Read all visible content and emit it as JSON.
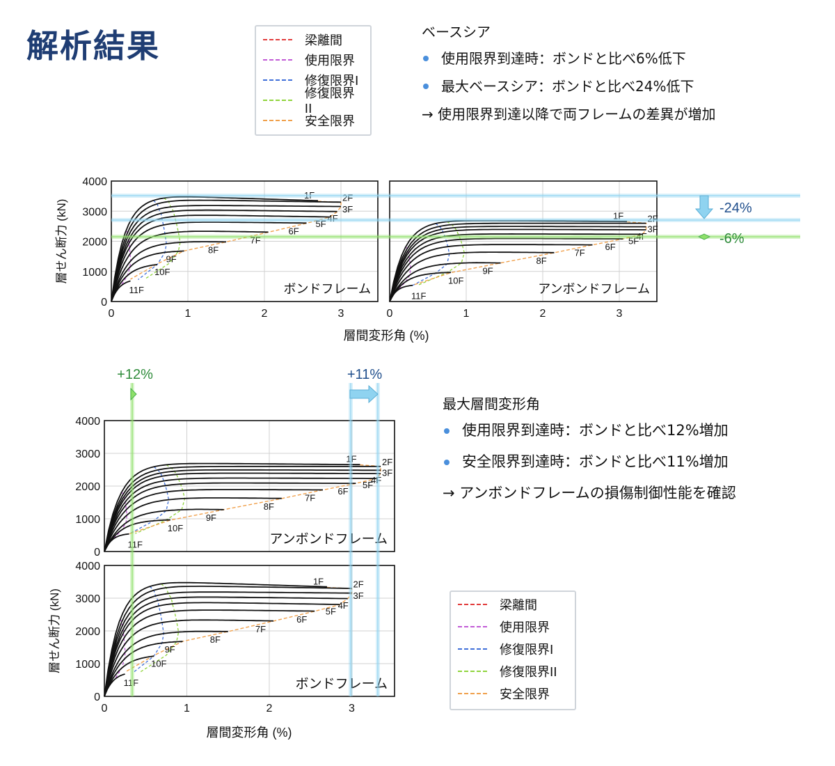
{
  "page": {
    "title": "解析結果"
  },
  "legend": {
    "items": [
      {
        "label": "梁離間",
        "color": "#e23b3b"
      },
      {
        "label": "使用限界",
        "color": "#c15ad6"
      },
      {
        "label": "修復限界I",
        "color": "#3f6fd9"
      },
      {
        "label": "修復限界II",
        "color": "#8fd43b"
      },
      {
        "label": "安全限界",
        "color": "#f0a04b"
      }
    ]
  },
  "notes": {
    "base_shear": {
      "heading": "ベースシア",
      "bullets": [
        "使用限界到達時：ボンドと比べ6%低下",
        "最大ベースシア：ボンドと比べ24%低下"
      ],
      "conclusion": "→ 使用限界到達以降で両フレームの差異が増加"
    },
    "drift": {
      "heading": "最大層間変形角",
      "bullets": [
        "使用限界到達時：ボンドと比べ12%増加",
        "安全限界到達時：ボンドと比べ11%増加"
      ],
      "conclusion": "→ アンボンドフレームの損傷制御性能を確認"
    }
  },
  "annotations": {
    "minus24": "-24%",
    "minus6": "-6%",
    "plus12": "+12%",
    "plus11": "+11%",
    "arrow_blue": "#8fd3f0",
    "arrow_green": "#8ee06a",
    "text_blue": "#1f4e8c",
    "text_green": "#2e8b3a"
  },
  "chart_data": [
    {
      "type": "line",
      "name": "bond-top",
      "frame_label": "ボンドフレーム",
      "xlabel": "層間変形角 (%)",
      "ylabel": "層せん断力 (kN)",
      "xlim": [
        0,
        3.5
      ],
      "ylim": [
        0,
        4000
      ],
      "xticks": [
        "0",
        "1",
        "2",
        "3"
      ],
      "yticks": [
        "0",
        "1000",
        "2000",
        "3000",
        "4000"
      ],
      "grid": true,
      "series": [
        {
          "name": "1F",
          "peak": 3500,
          "end": 3330,
          "yield_x": 0.55
        },
        {
          "name": "2F",
          "peak": 3380,
          "end": 3290,
          "yield_x": 0.6
        },
        {
          "name": "3F",
          "peak": 3200,
          "end": 3150,
          "yield_x": 0.62
        },
        {
          "name": "4F",
          "peak": 3050,
          "end": 2980,
          "yield_x": 0.65
        },
        {
          "name": "5F",
          "peak": 2880,
          "end": 2800,
          "yield_x": 0.66
        },
        {
          "name": "6F",
          "peak": 2650,
          "end": 2600,
          "yield_x": 0.68
        },
        {
          "name": "7F",
          "peak": 2350,
          "end": 2300,
          "yield_x": 0.7
        },
        {
          "name": "8F",
          "peak": 2000,
          "end": 1980,
          "yield_x": 0.72
        },
        {
          "name": "9F",
          "peak": 1700,
          "end": 1680,
          "yield_x": 0.7
        },
        {
          "name": "10F",
          "peak": 1280,
          "end": 1250,
          "yield_x": 0.6
        },
        {
          "name": "11F",
          "peak": 760,
          "end": 740,
          "yield_x": 0.35
        }
      ],
      "end_x": [
        2.7,
        3.0,
        3.0,
        2.95,
        2.85,
        2.55,
        2.05,
        1.5,
        0.95,
        0.6,
        0.25
      ]
    },
    {
      "type": "line",
      "name": "unbond-top",
      "frame_label": "アンボンドフレーム",
      "xlabel": "",
      "ylabel": "",
      "xlim": [
        0,
        3.5
      ],
      "ylim": [
        0,
        4000
      ],
      "xticks": [
        "0",
        "1",
        "2",
        "3"
      ],
      "yticks": [],
      "grid": true,
      "series": [
        {
          "name": "1F",
          "peak": 2700,
          "end": 2650,
          "yield_x": 0.6
        },
        {
          "name": "2F",
          "peak": 2600,
          "end": 2600,
          "yield_x": 0.65
        },
        {
          "name": "3F",
          "peak": 2500,
          "end": 2480,
          "yield_x": 0.68
        },
        {
          "name": "4F",
          "peak": 2400,
          "end": 2380,
          "yield_x": 0.7
        },
        {
          "name": "5F",
          "peak": 2250,
          "end": 2230,
          "yield_x": 0.72
        },
        {
          "name": "6F",
          "peak": 2100,
          "end": 2080,
          "yield_x": 0.74
        },
        {
          "name": "7F",
          "peak": 1900,
          "end": 1880,
          "yield_x": 0.76
        },
        {
          "name": "8F",
          "peak": 1650,
          "end": 1620,
          "yield_x": 0.78
        },
        {
          "name": "9F",
          "peak": 1300,
          "end": 1280,
          "yield_x": 0.75
        },
        {
          "name": "10F",
          "peak": 980,
          "end": 960,
          "yield_x": 0.6
        },
        {
          "name": "11F",
          "peak": 560,
          "end": 540,
          "yield_x": 0.3
        }
      ],
      "end_x": [
        3.1,
        3.35,
        3.35,
        3.35,
        3.3,
        3.05,
        2.65,
        2.15,
        1.45,
        0.8,
        0.3
      ]
    },
    {
      "type": "line",
      "name": "unbond-bottom",
      "frame_label": "アンボンドフレーム",
      "xlabel": "",
      "ylabel": "",
      "xlim": [
        0,
        3.5
      ],
      "ylim": [
        0,
        4000
      ],
      "xticks": [],
      "yticks": [
        "0",
        "1000",
        "2000",
        "3000",
        "4000"
      ],
      "grid": true,
      "series": [
        {
          "name": "1F",
          "peak": 2700,
          "end": 2650,
          "yield_x": 0.6
        },
        {
          "name": "2F",
          "peak": 2600,
          "end": 2600,
          "yield_x": 0.65
        },
        {
          "name": "3F",
          "peak": 2500,
          "end": 2480,
          "yield_x": 0.68
        },
        {
          "name": "4F",
          "peak": 2400,
          "end": 2380,
          "yield_x": 0.7
        },
        {
          "name": "5F",
          "peak": 2250,
          "end": 2230,
          "yield_x": 0.72
        },
        {
          "name": "6F",
          "peak": 2100,
          "end": 2080,
          "yield_x": 0.74
        },
        {
          "name": "7F",
          "peak": 1900,
          "end": 1880,
          "yield_x": 0.76
        },
        {
          "name": "8F",
          "peak": 1650,
          "end": 1620,
          "yield_x": 0.78
        },
        {
          "name": "9F",
          "peak": 1300,
          "end": 1280,
          "yield_x": 0.75
        },
        {
          "name": "10F",
          "peak": 980,
          "end": 960,
          "yield_x": 0.6
        },
        {
          "name": "11F",
          "peak": 560,
          "end": 540,
          "yield_x": 0.3
        }
      ],
      "end_x": [
        3.1,
        3.35,
        3.35,
        3.35,
        3.3,
        3.05,
        2.65,
        2.15,
        1.45,
        0.8,
        0.3
      ]
    },
    {
      "type": "line",
      "name": "bond-bottom",
      "frame_label": "ボンドフレーム",
      "xlabel": "層間変形角 (%)",
      "ylabel": "層せん断力 (kN)",
      "xlim": [
        0,
        3.5
      ],
      "ylim": [
        0,
        4000
      ],
      "xticks": [
        "0",
        "1",
        "2",
        "3"
      ],
      "yticks": [
        "0",
        "1000",
        "2000",
        "3000",
        "4000"
      ],
      "grid": true,
      "series": [
        {
          "name": "1F",
          "peak": 3500,
          "end": 3330,
          "yield_x": 0.55
        },
        {
          "name": "2F",
          "peak": 3380,
          "end": 3290,
          "yield_x": 0.6
        },
        {
          "name": "3F",
          "peak": 3200,
          "end": 3150,
          "yield_x": 0.62
        },
        {
          "name": "4F",
          "peak": 3050,
          "end": 2980,
          "yield_x": 0.65
        },
        {
          "name": "5F",
          "peak": 2880,
          "end": 2800,
          "yield_x": 0.66
        },
        {
          "name": "6F",
          "peak": 2650,
          "end": 2600,
          "yield_x": 0.68
        },
        {
          "name": "7F",
          "peak": 2350,
          "end": 2300,
          "yield_x": 0.7
        },
        {
          "name": "8F",
          "peak": 2000,
          "end": 1980,
          "yield_x": 0.72
        },
        {
          "name": "9F",
          "peak": 1700,
          "end": 1680,
          "yield_x": 0.7
        },
        {
          "name": "10F",
          "peak": 1280,
          "end": 1250,
          "yield_x": 0.6
        },
        {
          "name": "11F",
          "peak": 760,
          "end": 740,
          "yield_x": 0.35
        }
      ],
      "end_x": [
        2.7,
        3.0,
        3.0,
        2.95,
        2.85,
        2.55,
        2.05,
        1.5,
        0.95,
        0.6,
        0.25
      ]
    }
  ]
}
